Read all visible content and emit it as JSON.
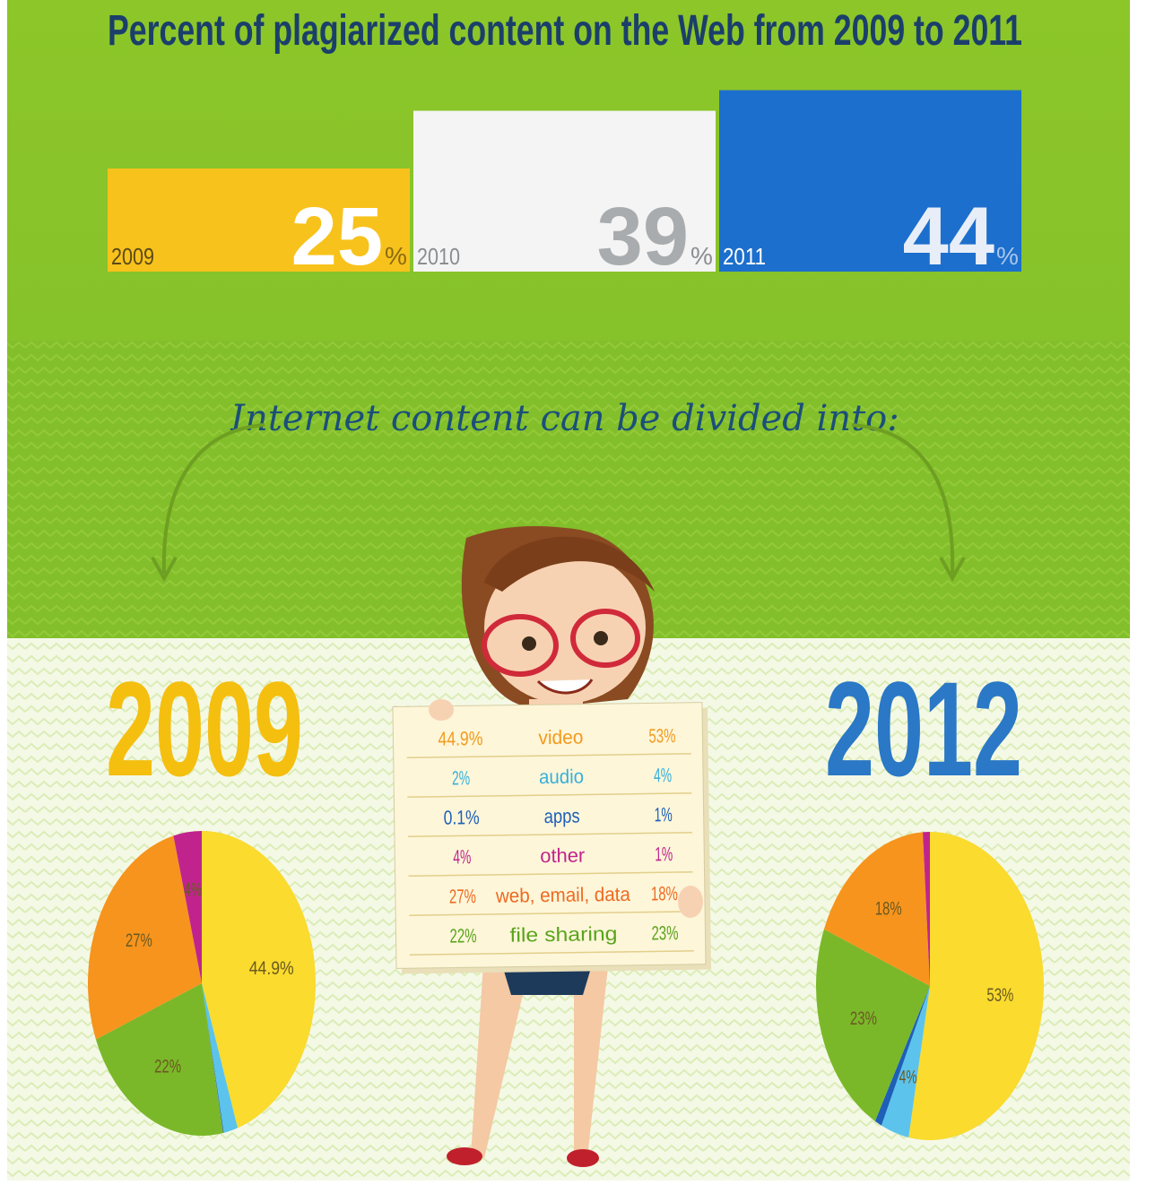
{
  "chart_data": [
    {
      "type": "bar",
      "title": "Percent of plagiarized content on the Web from 2009 to 2011",
      "categories": [
        "2009",
        "2010",
        "2011"
      ],
      "values": [
        25,
        39,
        44
      ],
      "unit": "%",
      "colors": [
        "#f8c21c",
        "#f4f4f4",
        "#1c6fcc"
      ]
    },
    {
      "type": "pie",
      "title": "2009",
      "values": [
        44.9,
        2,
        0.1,
        22,
        27,
        4
      ],
      "value_labels": [
        "44.9%",
        null,
        null,
        "22%",
        "27%",
        "4%"
      ],
      "colors": [
        "#fadb2e",
        "#5cc3ec",
        "#1e5fb8",
        "#7ab829",
        "#f7941d",
        "#c0248c"
      ]
    },
    {
      "type": "pie",
      "title": "2012",
      "values": [
        53,
        4,
        1,
        23,
        18,
        1
      ],
      "value_labels": [
        "53%",
        "4%",
        null,
        "23%",
        "18%",
        null
      ],
      "colors": [
        "#fadb2e",
        "#5cc3ec",
        "#1e5fb8",
        "#7ab829",
        "#f7941d",
        "#c0248c"
      ]
    }
  ],
  "subtitle": "Internet content can be divided into:",
  "sign": {
    "rows": [
      [
        "44.9%",
        "video",
        "53%"
      ],
      [
        "2%",
        "audio",
        "4%"
      ],
      [
        "0.1%",
        "apps",
        "1%"
      ],
      [
        "4%",
        "other",
        "1%"
      ],
      [
        "27%",
        "web, email, data",
        "18%"
      ],
      [
        "22%",
        "file sharing",
        "23%"
      ]
    ],
    "colors": [
      "#f39a1e",
      "#36b0dc",
      "#1e5fb8",
      "#c0248c",
      "#ee6a22",
      "#5aa31c"
    ]
  }
}
